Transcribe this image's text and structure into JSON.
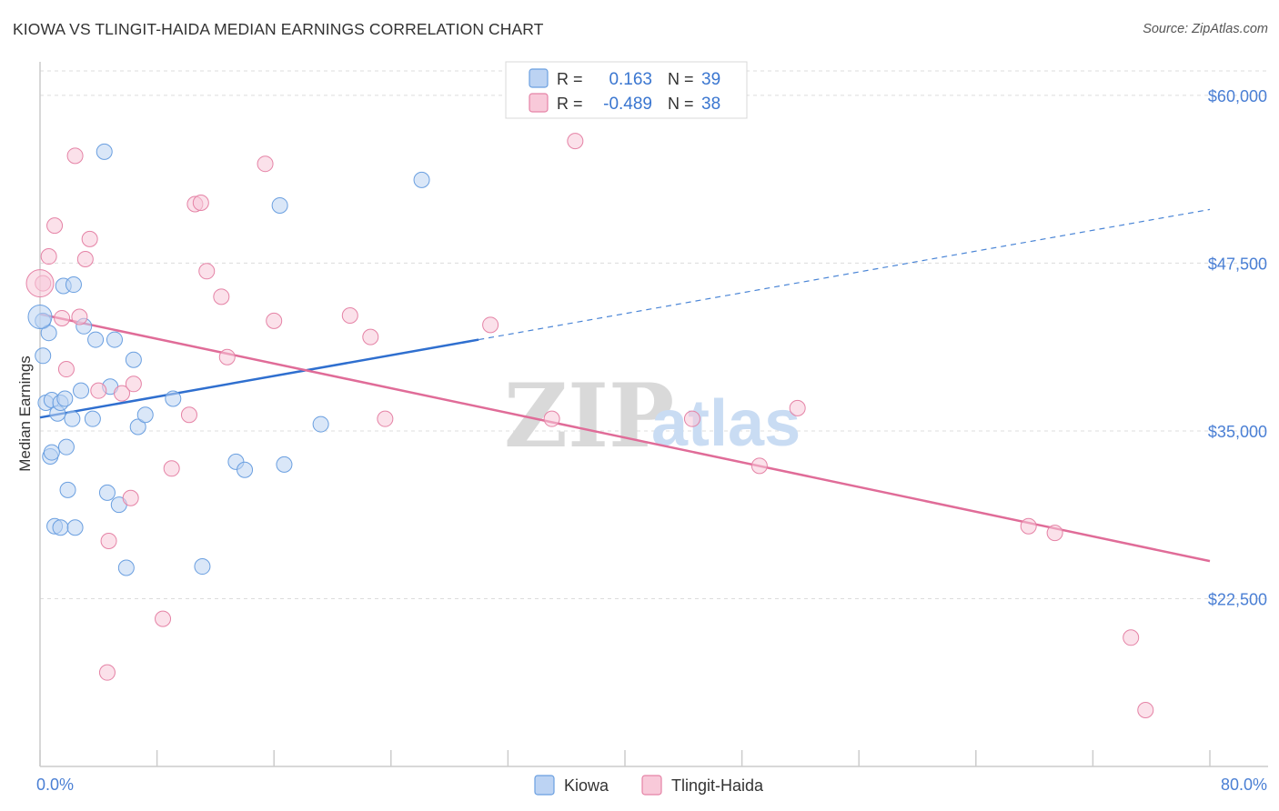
{
  "title": "KIOWA VS TLINGIT-HAIDA MEDIAN EARNINGS CORRELATION CHART",
  "source": "Source: ZipAtlas.com",
  "chart_data": {
    "type": "scatter",
    "ylabel": "Median Earnings",
    "xlim": [
      0,
      80
    ],
    "ylim": [
      10000,
      62500
    ],
    "y_ticks": [
      {
        "value": 60000,
        "label": "$60,000"
      },
      {
        "value": 47500,
        "label": "$47,500"
      },
      {
        "value": 35000,
        "label": "$35,000"
      },
      {
        "value": 22500,
        "label": "$22,500"
      }
    ],
    "x_labels": {
      "min": "0.0%",
      "max": "80.0%"
    },
    "watermark": {
      "zip": "ZIP",
      "atlas": "atlas"
    },
    "series": [
      {
        "name": "Kiowa",
        "color": "#6a9fe0",
        "fill": "#bcd3f3",
        "R_label": "R =",
        "R": "0.163",
        "N_label": "N =",
        "N": "39",
        "trend": {
          "x0": 0,
          "y0": 36000,
          "x1": 30,
          "y1": 41800,
          "x_end": 80,
          "y_end": 51500
        },
        "points": [
          [
            0.2,
            43200
          ],
          [
            0.2,
            40600
          ],
          [
            0.4,
            37100
          ],
          [
            0.6,
            42300
          ],
          [
            0.7,
            33100
          ],
          [
            0.8,
            37300
          ],
          [
            0.8,
            33400
          ],
          [
            1.0,
            27900
          ],
          [
            1.2,
            36300
          ],
          [
            1.4,
            37100
          ],
          [
            1.4,
            27800
          ],
          [
            1.6,
            45800
          ],
          [
            1.7,
            37400
          ],
          [
            1.8,
            33800
          ],
          [
            1.9,
            30600
          ],
          [
            2.2,
            35900
          ],
          [
            2.3,
            45900
          ],
          [
            2.4,
            27800
          ],
          [
            2.8,
            38000
          ],
          [
            3.0,
            42800
          ],
          [
            3.6,
            35900
          ],
          [
            3.8,
            41800
          ],
          [
            4.4,
            55800
          ],
          [
            4.6,
            30400
          ],
          [
            4.8,
            38300
          ],
          [
            5.1,
            41800
          ],
          [
            5.4,
            29500
          ],
          [
            5.9,
            24800
          ],
          [
            6.4,
            40300
          ],
          [
            6.7,
            35300
          ],
          [
            7.2,
            36200
          ],
          [
            9.1,
            37400
          ],
          [
            11.1,
            24900
          ],
          [
            13.4,
            32700
          ],
          [
            14.0,
            32100
          ],
          [
            16.4,
            51800
          ],
          [
            16.7,
            32500
          ],
          [
            19.2,
            35500
          ],
          [
            26.1,
            53700
          ]
        ]
      },
      {
        "name": "Tlingit-Haida",
        "color": "#e583a6",
        "fill": "#f8c9d9",
        "R_label": "R =",
        "R": "-0.489",
        "N_label": "N =",
        "N": "38",
        "trend": {
          "x0": 0,
          "y0": 43700,
          "x1": 80,
          "y1": 25300
        },
        "points": [
          [
            0.2,
            46000
          ],
          [
            0.6,
            48000
          ],
          [
            1.0,
            50300
          ],
          [
            1.5,
            43400
          ],
          [
            1.8,
            39600
          ],
          [
            2.4,
            55500
          ],
          [
            2.7,
            43500
          ],
          [
            3.1,
            47800
          ],
          [
            3.4,
            49300
          ],
          [
            4.0,
            38000
          ],
          [
            4.6,
            17000
          ],
          [
            4.7,
            26800
          ],
          [
            5.6,
            37800
          ],
          [
            6.2,
            30000
          ],
          [
            6.4,
            38500
          ],
          [
            8.4,
            21000
          ],
          [
            9.0,
            32200
          ],
          [
            10.2,
            36200
          ],
          [
            10.6,
            51900
          ],
          [
            11.0,
            52000
          ],
          [
            11.4,
            46900
          ],
          [
            12.4,
            45000
          ],
          [
            12.8,
            40500
          ],
          [
            15.4,
            54900
          ],
          [
            16.0,
            43200
          ],
          [
            21.2,
            43600
          ],
          [
            22.6,
            42000
          ],
          [
            23.6,
            35900
          ],
          [
            30.8,
            42900
          ],
          [
            35.0,
            35900
          ],
          [
            36.6,
            56600
          ],
          [
            44.6,
            35900
          ],
          [
            49.2,
            32400
          ],
          [
            51.8,
            36700
          ],
          [
            67.6,
            27900
          ],
          [
            69.4,
            27400
          ],
          [
            74.6,
            19600
          ],
          [
            75.6,
            14200
          ]
        ]
      }
    ]
  }
}
